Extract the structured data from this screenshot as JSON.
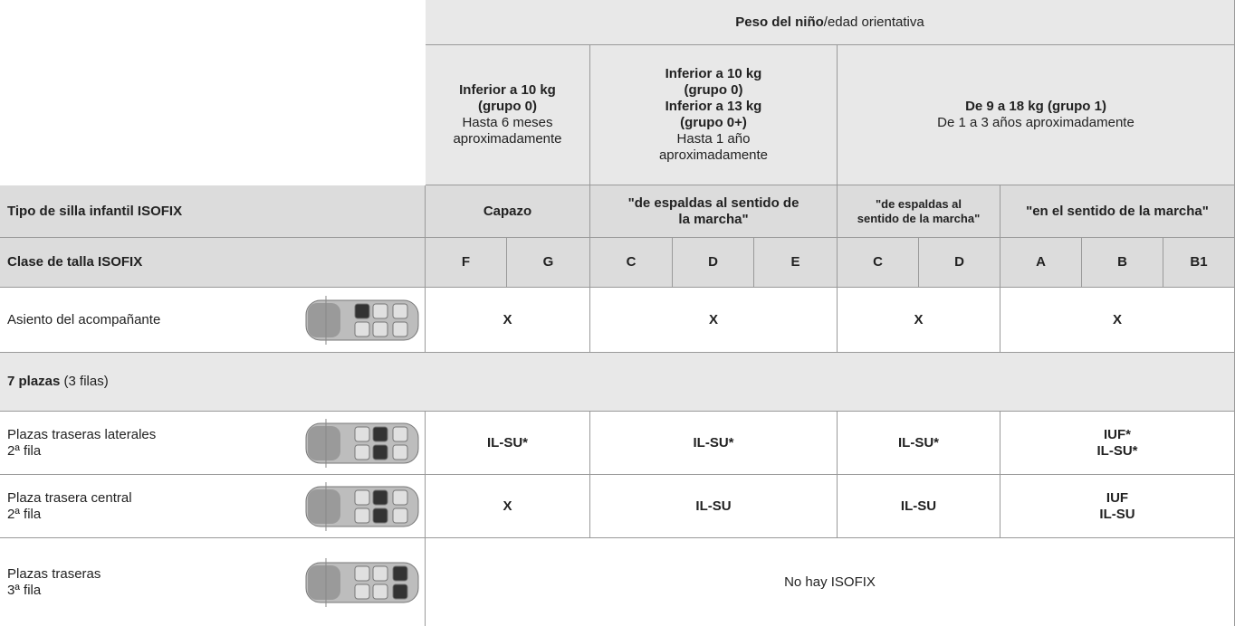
{
  "header": {
    "weight": {
      "bold": "Peso del niño",
      "normal": "/edad orientativa"
    },
    "groups": [
      {
        "bold": [
          "Inferior a 10 kg",
          "(grupo 0)"
        ],
        "normal": [
          "Hasta 6 meses",
          "aproximadamente"
        ]
      },
      {
        "bold": [
          "Inferior a 10 kg",
          "(grupo 0)",
          "Inferior a 13 kg",
          "(grupo 0+)"
        ],
        "normal": [
          "Hasta 1 año",
          "aproximadamente"
        ]
      },
      {
        "bold": [
          "De 9 a 18 kg (grupo 1)"
        ],
        "normal": [
          "De 1 a 3 años aproximadamente"
        ]
      }
    ]
  },
  "seat_type": {
    "label": "Tipo de silla infantil ISOFIX",
    "values": [
      [
        "Capazo"
      ],
      [
        "\"de espaldas al sentido de",
        "la marcha\""
      ],
      [
        "\"de espaldas al",
        "sentido de la marcha\""
      ],
      [
        "\"en el sentido de la marcha\""
      ]
    ]
  },
  "size_class": {
    "label": "Clase de talla ISOFIX",
    "values": [
      "F",
      "G",
      "C",
      "D",
      "E",
      "C",
      "D",
      "A",
      "B",
      "B1"
    ]
  },
  "rows": [
    {
      "label": [
        "Asiento del acompañante"
      ],
      "values": [
        [
          "X"
        ],
        [
          "X"
        ],
        [
          "X"
        ],
        [
          "X"
        ]
      ]
    },
    {
      "section": {
        "bold": "7 plazas",
        "normal": "(3 filas)"
      }
    },
    {
      "label": [
        "Plazas traseras laterales",
        "2ª fila"
      ],
      "values": [
        [
          "IL-SU*"
        ],
        [
          "IL-SU*"
        ],
        [
          "IL-SU*"
        ],
        [
          "IUF*",
          "IL-SU*"
        ]
      ]
    },
    {
      "label": [
        "Plaza trasera central",
        "2ª fila"
      ],
      "values": [
        [
          "X"
        ],
        [
          "IL-SU"
        ],
        [
          "IL-SU"
        ],
        [
          "IUF",
          "IL-SU"
        ]
      ]
    },
    {
      "label": [
        "Plazas traseras",
        "3ª fila"
      ],
      "values": [
        [
          "No hay ISOFIX"
        ]
      ]
    }
  ]
}
